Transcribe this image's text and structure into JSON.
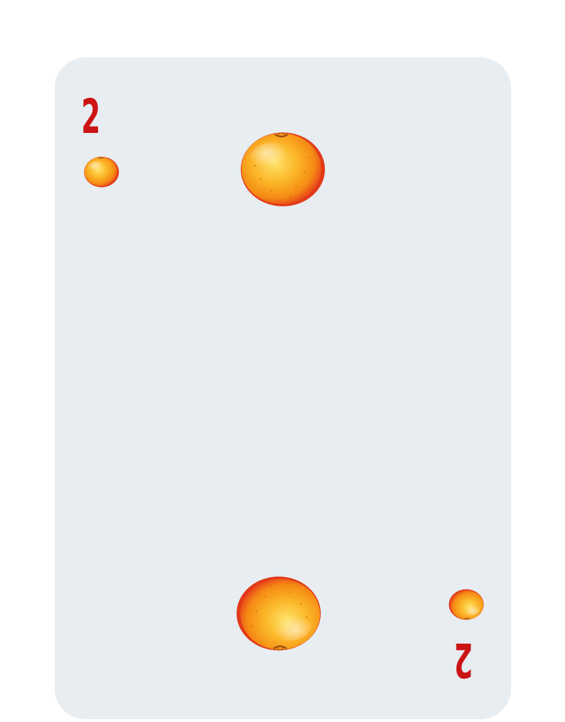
{
  "card": {
    "rank": "2",
    "suit": "orange",
    "suit_icon": "orange-fruit-icon",
    "colors": {
      "background": "#e7edf1",
      "rank": "#cc1414",
      "fruit_light": "#ffd34d",
      "fruit_mid": "#f8a21a",
      "fruit_dark": "#e8441c"
    }
  }
}
